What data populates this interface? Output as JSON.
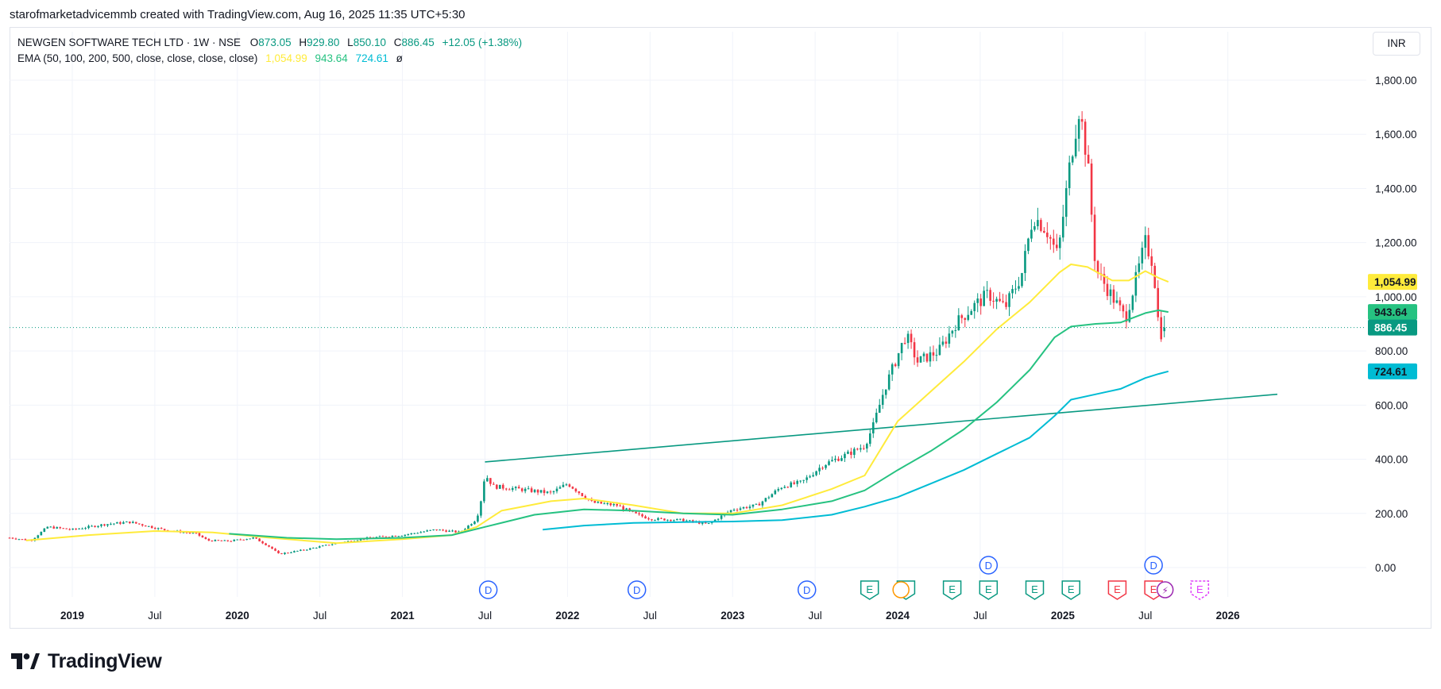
{
  "header": {
    "attribution": "starofmarketadvicemmb created with TradingView.com, Aug 16, 2025 11:35 UTC+5:30"
  },
  "legend": {
    "symbol_line": "NEWGEN SOFTWARE TECH LTD · 1W · NSE",
    "o_label": "O",
    "o_value": "873.05",
    "h_label": "H",
    "h_value": "929.80",
    "l_label": "L",
    "l_value": "850.10",
    "c_label": "C",
    "c_value": "886.45",
    "change": "+12.05 (+1.38%)",
    "ema_label": "EMA (50, 100, 200, 500, close, close, close, close)",
    "ema_values": [
      "1,054.99",
      "943.64",
      "724.61",
      "ø"
    ]
  },
  "currency_button": "INR",
  "brand": {
    "name": "TradingView"
  },
  "colors": {
    "up": "#089981",
    "down": "#f23645",
    "ema50": "#ffeb3b",
    "ema100": "#26c281",
    "ema200": "#00bcd4",
    "trendline": "#089981",
    "dividend": "#2962ff",
    "earnings_past": "#089981",
    "earnings_recent": "#f23645",
    "earnings_future": "#e040fb",
    "split": "#9c27b0"
  },
  "chart_data": {
    "type": "candlestick",
    "title": "NEWGEN SOFTWARE TECH LTD · 1W · NSE",
    "ylim": [
      -55,
      1880
    ],
    "y_ticks": [
      "0.00",
      "200.00",
      "400.00",
      "600.00",
      "800.00",
      "1,000.00",
      "1,200.00",
      "1,400.00",
      "1,600.00",
      "1,800.00"
    ],
    "y_tick_values": [
      0,
      200,
      400,
      600,
      800,
      1000,
      1200,
      1400,
      1600,
      1800
    ],
    "x_ticks": [
      {
        "label": "2019",
        "t": 2019.0,
        "bold": true
      },
      {
        "label": "Jul",
        "t": 2019.5,
        "bold": false
      },
      {
        "label": "2020",
        "t": 2020.0,
        "bold": true
      },
      {
        "label": "Jul",
        "t": 2020.5,
        "bold": false
      },
      {
        "label": "2021",
        "t": 2021.0,
        "bold": true
      },
      {
        "label": "Jul",
        "t": 2021.5,
        "bold": false
      },
      {
        "label": "2022",
        "t": 2022.0,
        "bold": true
      },
      {
        "label": "Jul",
        "t": 2022.5,
        "bold": false
      },
      {
        "label": "2023",
        "t": 2023.0,
        "bold": true
      },
      {
        "label": "Jul",
        "t": 2023.5,
        "bold": false
      },
      {
        "label": "2024",
        "t": 2024.0,
        "bold": true
      },
      {
        "label": "Jul",
        "t": 2024.5,
        "bold": false
      },
      {
        "label": "2025",
        "t": 2025.0,
        "bold": true
      },
      {
        "label": "Jul",
        "t": 2025.5,
        "bold": false
      },
      {
        "label": "2026",
        "t": 2026.0,
        "bold": true
      }
    ],
    "price_anchors": [
      [
        2018.62,
        110
      ],
      [
        2018.75,
        100
      ],
      [
        2018.85,
        150
      ],
      [
        2019.0,
        140
      ],
      [
        2019.2,
        160
      ],
      [
        2019.35,
        168
      ],
      [
        2019.55,
        140
      ],
      [
        2019.75,
        125
      ],
      [
        2019.82,
        100
      ],
      [
        2019.95,
        98
      ],
      [
        2020.1,
        110
      ],
      [
        2020.2,
        75
      ],
      [
        2020.25,
        50
      ],
      [
        2020.4,
        65
      ],
      [
        2020.6,
        90
      ],
      [
        2020.8,
        110
      ],
      [
        2021.0,
        120
      ],
      [
        2021.2,
        140
      ],
      [
        2021.35,
        130
      ],
      [
        2021.45,
        180
      ],
      [
        2021.48,
        260
      ],
      [
        2021.5,
        345
      ],
      [
        2021.55,
        300
      ],
      [
        2021.7,
        290
      ],
      [
        2021.9,
        275
      ],
      [
        2022.0,
        310
      ],
      [
        2022.15,
        240
      ],
      [
        2022.3,
        230
      ],
      [
        2022.4,
        200
      ],
      [
        2022.5,
        180
      ],
      [
        2022.7,
        175
      ],
      [
        2022.85,
        160
      ],
      [
        2023.0,
        215
      ],
      [
        2023.15,
        230
      ],
      [
        2023.3,
        300
      ],
      [
        2023.42,
        315
      ],
      [
        2023.55,
        380
      ],
      [
        2023.7,
        420
      ],
      [
        2023.8,
        450
      ],
      [
        2023.85,
        520
      ],
      [
        2023.92,
        660
      ],
      [
        2024.05,
        860
      ],
      [
        2024.12,
        760
      ],
      [
        2024.25,
        800
      ],
      [
        2024.35,
        900
      ],
      [
        2024.45,
        960
      ],
      [
        2024.55,
        1010
      ],
      [
        2024.65,
        960
      ],
      [
        2024.75,
        1080
      ],
      [
        2024.82,
        1300
      ],
      [
        2024.9,
        1250
      ],
      [
        2024.97,
        1150
      ],
      [
        2025.05,
        1520
      ],
      [
        2025.1,
        1700
      ],
      [
        2025.15,
        1500
      ],
      [
        2025.2,
        1100
      ],
      [
        2025.3,
        1000
      ],
      [
        2025.38,
        920
      ],
      [
        2025.45,
        1080
      ],
      [
        2025.5,
        1200
      ],
      [
        2025.55,
        1120
      ],
      [
        2025.57,
        950
      ],
      [
        2025.59,
        860
      ],
      [
        2025.62,
        886.45
      ]
    ],
    "last_candle": {
      "open": 873.05,
      "high": 929.8,
      "low": 850.1,
      "close": 886.45
    },
    "series": [
      {
        "name": "EMA 50",
        "color": "#ffeb3b",
        "points": [
          [
            2018.72,
            100
          ],
          [
            2019.1,
            120
          ],
          [
            2019.5,
            135
          ],
          [
            2019.85,
            130
          ],
          [
            2020.2,
            110
          ],
          [
            2020.6,
            90
          ],
          [
            2021.0,
            105
          ],
          [
            2021.3,
            120
          ],
          [
            2021.45,
            150
          ],
          [
            2021.6,
            210
          ],
          [
            2021.9,
            245
          ],
          [
            2022.1,
            255
          ],
          [
            2022.4,
            230
          ],
          [
            2022.7,
            200
          ],
          [
            2023.0,
            200
          ],
          [
            2023.3,
            230
          ],
          [
            2023.6,
            290
          ],
          [
            2023.8,
            340
          ],
          [
            2024.0,
            540
          ],
          [
            2024.2,
            650
          ],
          [
            2024.4,
            760
          ],
          [
            2024.6,
            880
          ],
          [
            2024.8,
            980
          ],
          [
            2024.98,
            1090
          ],
          [
            2025.05,
            1120
          ],
          [
            2025.15,
            1110
          ],
          [
            2025.3,
            1060
          ],
          [
            2025.4,
            1060
          ],
          [
            2025.5,
            1095
          ],
          [
            2025.58,
            1070
          ],
          [
            2025.64,
            1054.99
          ]
        ]
      },
      {
        "name": "EMA 100",
        "color": "#26c281",
        "points": [
          [
            2019.95,
            125
          ],
          [
            2020.3,
            110
          ],
          [
            2020.6,
            105
          ],
          [
            2021.0,
            110
          ],
          [
            2021.3,
            120
          ],
          [
            2021.5,
            150
          ],
          [
            2021.8,
            195
          ],
          [
            2022.1,
            215
          ],
          [
            2022.4,
            210
          ],
          [
            2022.7,
            200
          ],
          [
            2023.0,
            195
          ],
          [
            2023.3,
            215
          ],
          [
            2023.6,
            245
          ],
          [
            2023.8,
            285
          ],
          [
            2024.0,
            360
          ],
          [
            2024.2,
            430
          ],
          [
            2024.4,
            510
          ],
          [
            2024.6,
            610
          ],
          [
            2024.8,
            730
          ],
          [
            2024.95,
            850
          ],
          [
            2025.05,
            890
          ],
          [
            2025.2,
            900
          ],
          [
            2025.35,
            905
          ],
          [
            2025.5,
            940
          ],
          [
            2025.58,
            950
          ],
          [
            2025.64,
            943.64
          ]
        ]
      },
      {
        "name": "EMA 200",
        "color": "#00bcd4",
        "points": [
          [
            2021.85,
            140
          ],
          [
            2022.1,
            155
          ],
          [
            2022.4,
            165
          ],
          [
            2022.7,
            168
          ],
          [
            2023.0,
            170
          ],
          [
            2023.3,
            175
          ],
          [
            2023.6,
            195
          ],
          [
            2023.8,
            225
          ],
          [
            2024.0,
            260
          ],
          [
            2024.2,
            310
          ],
          [
            2024.4,
            360
          ],
          [
            2024.6,
            420
          ],
          [
            2024.8,
            480
          ],
          [
            2024.95,
            560
          ],
          [
            2025.05,
            620
          ],
          [
            2025.2,
            640
          ],
          [
            2025.35,
            660
          ],
          [
            2025.5,
            700
          ],
          [
            2025.58,
            715
          ],
          [
            2025.64,
            724.61
          ]
        ]
      }
    ],
    "trendline": [
      [
        2021.5,
        390
      ],
      [
        2026.3,
        640
      ]
    ],
    "price_labels": [
      {
        "text": "1,054.99",
        "value": 1054.99,
        "color": "#ffeb3b",
        "text_color": "#131722"
      },
      {
        "text": "943.64",
        "value": 943.64,
        "color": "#26c281",
        "text_color": "#131722"
      },
      {
        "text": "886.45",
        "value": 886.45,
        "color": "#089981",
        "text_color": "#ffffff"
      },
      {
        "text": "724.61",
        "value": 724.61,
        "color": "#00bcd4",
        "text_color": "#131722"
      }
    ],
    "last_price": 886.45,
    "events": [
      {
        "kind": "dividend",
        "letter": "D",
        "t": 2021.52,
        "row": 1
      },
      {
        "kind": "dividend",
        "letter": "D",
        "t": 2022.42,
        "row": 1
      },
      {
        "kind": "dividend",
        "letter": "D",
        "t": 2023.45,
        "row": 1
      },
      {
        "kind": "dividend",
        "letter": "D",
        "t": 2024.55,
        "row": 0
      },
      {
        "kind": "dividend",
        "letter": "D",
        "t": 2025.55,
        "row": 0
      },
      {
        "kind": "earnings",
        "letter": "E",
        "t": 2023.83,
        "row": 1,
        "color": "#089981"
      },
      {
        "kind": "earnings",
        "letter": "E",
        "t": 2024.05,
        "row": 1,
        "color": "#089981"
      },
      {
        "kind": "earnings",
        "letter": "E",
        "t": 2024.33,
        "row": 1,
        "color": "#089981"
      },
      {
        "kind": "earnings",
        "letter": "E",
        "t": 2024.55,
        "row": 1,
        "color": "#089981"
      },
      {
        "kind": "earnings",
        "letter": "E",
        "t": 2024.83,
        "row": 1,
        "color": "#089981"
      },
      {
        "kind": "earnings",
        "letter": "E",
        "t": 2025.05,
        "row": 1,
        "color": "#089981"
      },
      {
        "kind": "earnings",
        "letter": "E",
        "t": 2025.33,
        "row": 1,
        "color": "#f23645"
      },
      {
        "kind": "earnings",
        "letter": "E",
        "t": 2025.55,
        "row": 1,
        "color": "#f23645"
      },
      {
        "kind": "earnings",
        "letter": "E",
        "t": 2025.83,
        "row": 1,
        "color": "#e040fb",
        "future": true
      },
      {
        "kind": "split",
        "letter": "",
        "t": 2024.02,
        "row": 1,
        "color": "#ff9800"
      },
      {
        "kind": "split",
        "letter": "⚡",
        "t": 2025.62,
        "row": 1,
        "color": "#9c27b0"
      }
    ]
  }
}
